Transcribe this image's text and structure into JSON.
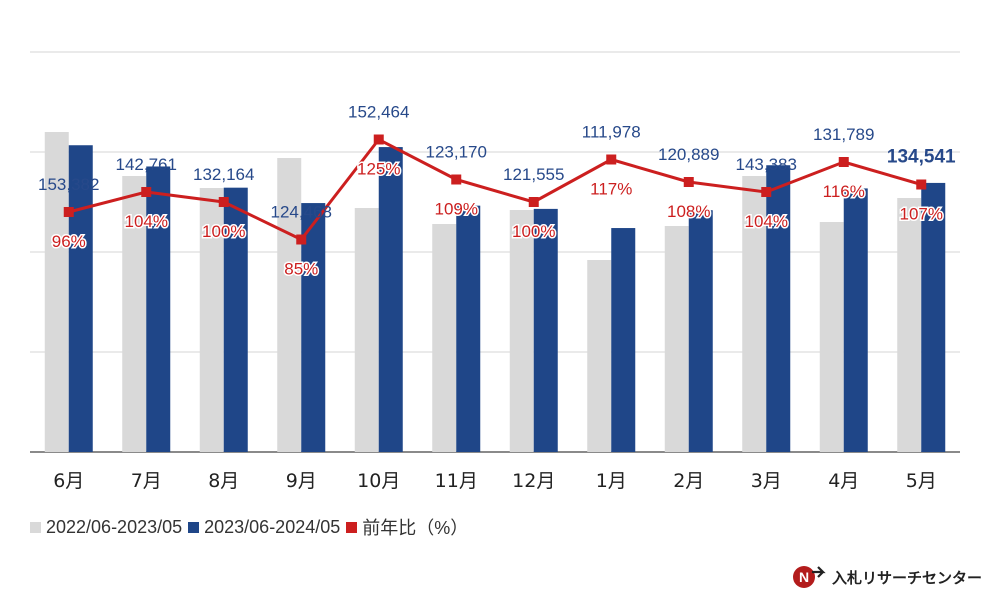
{
  "chart_data": {
    "type": "bar",
    "categories": [
      "6月",
      "7月",
      "8月",
      "9月",
      "10月",
      "11月",
      "12月",
      "1月",
      "2月",
      "3月",
      "4月",
      "5月"
    ],
    "series": [
      {
        "name": "2022/06-2023/05",
        "color": "#d9d9d9",
        "values": [
          160000,
          138000,
          132000,
          147000,
          122000,
          114000,
          121000,
          96000,
          113000,
          138000,
          115000,
          127000
        ]
      },
      {
        "name": "2023/06-2024/05",
        "color": "#1f4688",
        "values": [
          153382,
          142761,
          132164,
          124468,
          152464,
          123170,
          121555,
          111978,
          120889,
          143383,
          131789,
          134541
        ],
        "labels": [
          "153,382",
          "142,761",
          "132,164",
          "124,468",
          "152,464",
          "123,170",
          "121,555",
          "111,978",
          "120,889",
          "143,383",
          "131,789",
          "134,541"
        ]
      }
    ],
    "line": {
      "name": "前年比（%）",
      "color": "#cc1f1f",
      "values": [
        96,
        104,
        100,
        85,
        125,
        109,
        100,
        117,
        108,
        104,
        116,
        107
      ],
      "labels": [
        "96%",
        "104%",
        "100%",
        "85%",
        "125%",
        "109%",
        "100%",
        "117%",
        "108%",
        "104%",
        "116%",
        "107%"
      ]
    },
    "ylim": [
      0,
      200000
    ],
    "y2lim": [
      0,
      160
    ],
    "grid": true,
    "legend_position": "bottom-left"
  },
  "brand": {
    "name": "入札リサーチセンター"
  }
}
